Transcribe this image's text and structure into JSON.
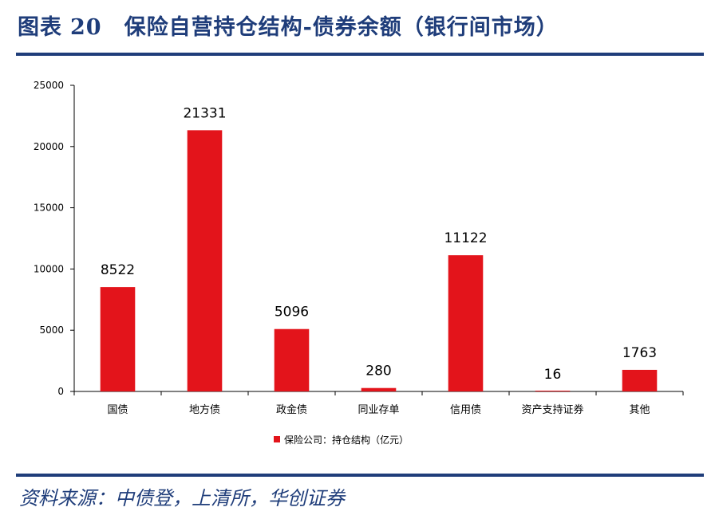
{
  "header": {
    "label": "图表",
    "number": "20",
    "title": "保险自营持仓结构-债券余额（银行间市场）"
  },
  "source": "资料来源：中债登，上清所，华创证券",
  "colors": {
    "accent": "#1f3d7a",
    "bar": "#e3141b"
  },
  "chart_data": {
    "type": "bar",
    "categories": [
      "国债",
      "地方债",
      "政金债",
      "同业存单",
      "信用债",
      "资产支持证券",
      "其他"
    ],
    "series": [
      {
        "name": "保险公司：持仓结构（亿元）",
        "values": [
          8522,
          21331,
          5096,
          280,
          11122,
          16,
          1763
        ]
      }
    ],
    "ylim": [
      0,
      25000
    ],
    "yticks": [
      0,
      5000,
      10000,
      15000,
      20000,
      25000
    ],
    "legend_position": "bottom",
    "grid": false
  }
}
